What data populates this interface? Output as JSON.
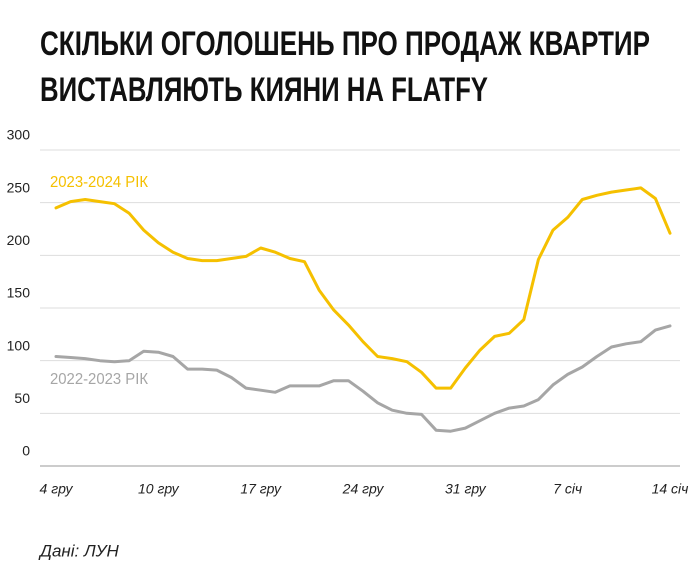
{
  "chart_data": {
    "type": "line",
    "title": [
      "СКІЛЬКИ ОГОЛОШЕНЬ ПРО ПРОДАЖ КВАРТИР",
      "ВИСТАВЛЯЮТЬ КИЯНИ НА FLATFY"
    ],
    "source": "Дані: ЛУН",
    "categories": [
      "4 гру",
      null,
      null,
      null,
      null,
      null,
      null,
      "10 гру",
      null,
      null,
      null,
      null,
      null,
      null,
      "17 гру",
      null,
      null,
      null,
      null,
      null,
      null,
      "24 гру",
      null,
      null,
      null,
      null,
      null,
      null,
      "31 гру",
      null,
      null,
      null,
      null,
      null,
      null,
      "7 січ",
      null,
      null,
      null,
      null,
      null,
      null,
      "14 січ"
    ],
    "series": [
      {
        "name": "2023-2024 РІК",
        "color": "#f5c000",
        "values": [
          245,
          251,
          253,
          251,
          249,
          240,
          224,
          212,
          203,
          197,
          195,
          195,
          197,
          199,
          207,
          203,
          197,
          194,
          167,
          148,
          134,
          118,
          104,
          102,
          99,
          89,
          74,
          74,
          93,
          110,
          123,
          126,
          139,
          196,
          224,
          236,
          253,
          257,
          260,
          262,
          264,
          254,
          221
        ]
      },
      {
        "name": "2022-2023 РІК",
        "color": "#a6a6a6",
        "values": [
          104,
          103,
          102,
          100,
          99,
          100,
          109,
          108,
          104,
          92,
          92,
          91,
          84,
          74,
          72,
          70,
          76,
          76,
          76,
          81,
          81,
          71,
          60,
          53,
          50,
          49,
          34,
          33,
          36,
          43,
          50,
          55,
          57,
          63,
          77,
          87,
          94,
          104,
          113,
          116,
          118,
          129,
          133
        ]
      }
    ],
    "ylim": [
      0,
      300
    ],
    "yticks": [
      0,
      50,
      100,
      150,
      200,
      250,
      300
    ],
    "grid": true
  }
}
